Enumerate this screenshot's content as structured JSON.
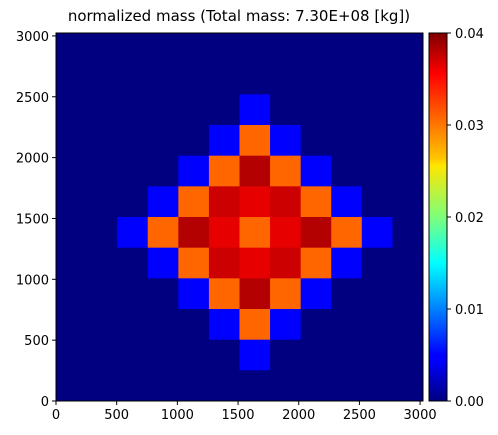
{
  "chart_data": {
    "type": "heatmap",
    "title": "normalized mass (Total mass:  7.30E+08 [kg])",
    "xlabel": "",
    "ylabel": "",
    "xlim": [
      0,
      3024
    ],
    "ylim": [
      0,
      3024
    ],
    "cell_size": 252,
    "x_ticks": [
      0,
      500,
      1000,
      1500,
      2000,
      2500,
      3000
    ],
    "y_ticks": [
      0,
      500,
      1000,
      1500,
      2000,
      2500,
      3000
    ],
    "x_tick_labels": [
      "0",
      "500",
      "1000",
      "1500",
      "2000",
      "2500",
      "3000"
    ],
    "y_tick_labels": [
      "0",
      "500",
      "1000",
      "1500",
      "2000",
      "2500",
      "3000"
    ],
    "colorbar": {
      "colormap": "jet",
      "range": [
        0.0,
        0.04
      ],
      "ticks": [
        0.0,
        0.01,
        0.02,
        0.03,
        0.04
      ],
      "tick_labels": [
        "0.00",
        "0.01",
        "0.02",
        "0.03",
        "0.04"
      ]
    },
    "grid": false,
    "rows_top_to_bottom": [
      [
        0,
        0,
        0,
        0,
        0,
        0,
        0,
        0,
        0,
        0,
        0,
        0
      ],
      [
        0,
        0,
        0,
        0,
        0,
        0,
        0,
        0,
        0,
        0,
        0,
        0
      ],
      [
        0,
        0,
        0,
        0,
        0,
        0,
        0.005,
        0,
        0,
        0,
        0,
        0
      ],
      [
        0,
        0,
        0,
        0,
        0,
        0.005,
        0.031,
        0.005,
        0,
        0,
        0,
        0
      ],
      [
        0,
        0,
        0,
        0,
        0.005,
        0.031,
        0.038,
        0.031,
        0.005,
        0,
        0,
        0
      ],
      [
        0,
        0,
        0,
        0.005,
        0.031,
        0.037,
        0.036,
        0.037,
        0.031,
        0.005,
        0,
        0
      ],
      [
        0,
        0,
        0.005,
        0.031,
        0.038,
        0.036,
        0.031,
        0.036,
        0.038,
        0.031,
        0.005,
        0
      ],
      [
        0,
        0,
        0,
        0.005,
        0.031,
        0.037,
        0.036,
        0.037,
        0.031,
        0.005,
        0,
        0
      ],
      [
        0,
        0,
        0,
        0,
        0.005,
        0.031,
        0.038,
        0.031,
        0.005,
        0,
        0,
        0
      ],
      [
        0,
        0,
        0,
        0,
        0,
        0.005,
        0.031,
        0.005,
        0,
        0,
        0,
        0
      ],
      [
        0,
        0,
        0,
        0,
        0,
        0,
        0.005,
        0,
        0,
        0,
        0,
        0
      ],
      [
        0,
        0,
        0,
        0,
        0,
        0,
        0,
        0,
        0,
        0,
        0,
        0
      ]
    ]
  }
}
